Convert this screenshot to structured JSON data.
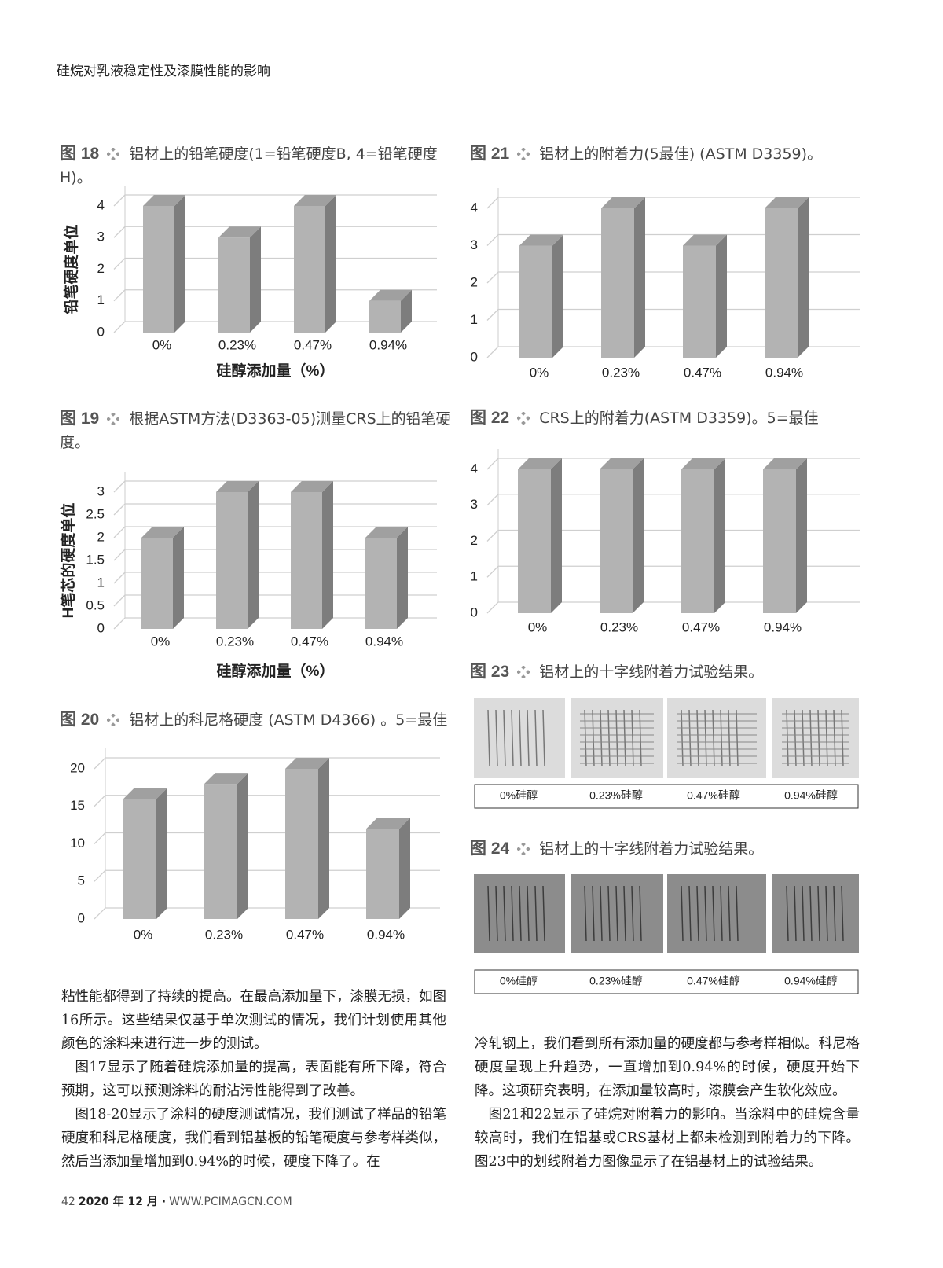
{
  "header": {
    "title": "硅烷对乳液稳定性及漆膜性能的影响"
  },
  "chart_data": [
    {
      "type": "bar",
      "label": "图 18",
      "title": "铝材上的铅笔硬度(1=铅笔硬度B, 4=铅笔硬度H)。",
      "y_label": "铅笔硬度单位",
      "x_label": "硅醇添加量（%）",
      "categories": [
        "0%",
        "0.23%",
        "0.47%",
        "0.94%"
      ],
      "values": [
        4,
        3,
        4,
        1
      ],
      "color": "#b3b3b3",
      "ylim": [
        0,
        4
      ],
      "yticks": [
        0,
        1,
        2,
        3,
        4
      ],
      "grid": true
    },
    {
      "type": "bar",
      "label": "图 21",
      "title": "铝材上的附着力(5最佳) (ASTM D3359)。",
      "categories": [
        "0%",
        "0.23%",
        "0.47%",
        "0.94%"
      ],
      "values": [
        3,
        4,
        3,
        4
      ],
      "color": "#b3b3b3",
      "ylim": [
        0,
        4
      ],
      "yticks": [
        0,
        1,
        2,
        3,
        4
      ],
      "grid": true
    },
    {
      "type": "bar",
      "label": "图 19",
      "title": "根据ASTM方法(D3363-05)测量CRS上的铅笔硬度。",
      "y_label": "H笔芯的硬度单位",
      "x_label": "硅醇添加量（%）",
      "categories": [
        "0%",
        "0.23%",
        "0.47%",
        "0.94%"
      ],
      "values": [
        2,
        3,
        3,
        2
      ],
      "color": "#b3b3b3",
      "ylim": [
        0,
        3
      ],
      "yticks": [
        0,
        0.5,
        1,
        1.5,
        2,
        2.5,
        3
      ],
      "grid": true
    },
    {
      "type": "bar",
      "label": "图 22",
      "title": "CRS上的附着力(ASTM D3359)。5=最佳",
      "categories": [
        "0%",
        "0.23%",
        "0.47%",
        "0.94%"
      ],
      "values": [
        4,
        4,
        4,
        4
      ],
      "color": "#b3b3b3",
      "ylim": [
        0,
        4
      ],
      "yticks": [
        0,
        1,
        2,
        3,
        4
      ],
      "grid": true
    },
    {
      "type": "bar",
      "label": "图 20",
      "title": "铝材上的科尼格硬度 (ASTM D4366) 。5=最佳",
      "categories": [
        "0%",
        "0.23%",
        "0.47%",
        "0.94%"
      ],
      "values": [
        16,
        18,
        20,
        12
      ],
      "color": "#b3b3b3",
      "ylim": [
        0,
        20
      ],
      "yticks": [
        0,
        5,
        10,
        15,
        20
      ],
      "grid": true
    }
  ],
  "figures": [
    {
      "label": "图 23",
      "title": "铝材上的十字线附着力试验结果。",
      "panels": [
        "0%硅醇",
        "0.23%硅醇",
        "0.47%硅醇",
        "0.94%硅醇"
      ]
    },
    {
      "label": "图 24",
      "title": "铝材上的十字线附着力试验结果。",
      "panels": [
        "0%硅醇",
        "0.23%硅醇",
        "0.47%硅醇",
        "0.94%硅醇"
      ]
    }
  ],
  "body": {
    "left": [
      "粘性能都得到了持续的提高。在最高添加量下，漆膜无损，如图16所示。这些结果仅基于单次测试的情况，我们计划使用其他颜色的涂料来进行进一步的测试。",
      "图17显示了随着硅烷添加量的提高，表面能有所下降，符合预期，这可以预测涂料的耐沾污性能得到了改善。",
      "图18-20显示了涂料的硬度测试情况，我们测试了样品的铅笔硬度和科尼格硬度，我们看到铝基板的铅笔硬度与参考样类似，然后当添加量增加到0.94%的时候，硬度下降了。在"
    ],
    "right": [
      "冷轧钢上，我们看到所有添加量的硬度都与参考样相似。科尼格硬度呈现上升趋势，一直增加到0.94%的时候，硬度开始下降。这项研究表明，在添加量较高时，漆膜会产生软化效应。",
      "图21和22显示了硅烷对附着力的影响。当涂料中的硅烷含量较高时，我们在铝基或CRS基材上都未检测到附着力的下降。图23中的划线附着力图像显示了在铝基材上的试验结果。"
    ]
  },
  "footer": {
    "page": "42",
    "date": "2020 年 12 月 ·",
    "site": "WWW.PCIMAGCN.COM"
  }
}
